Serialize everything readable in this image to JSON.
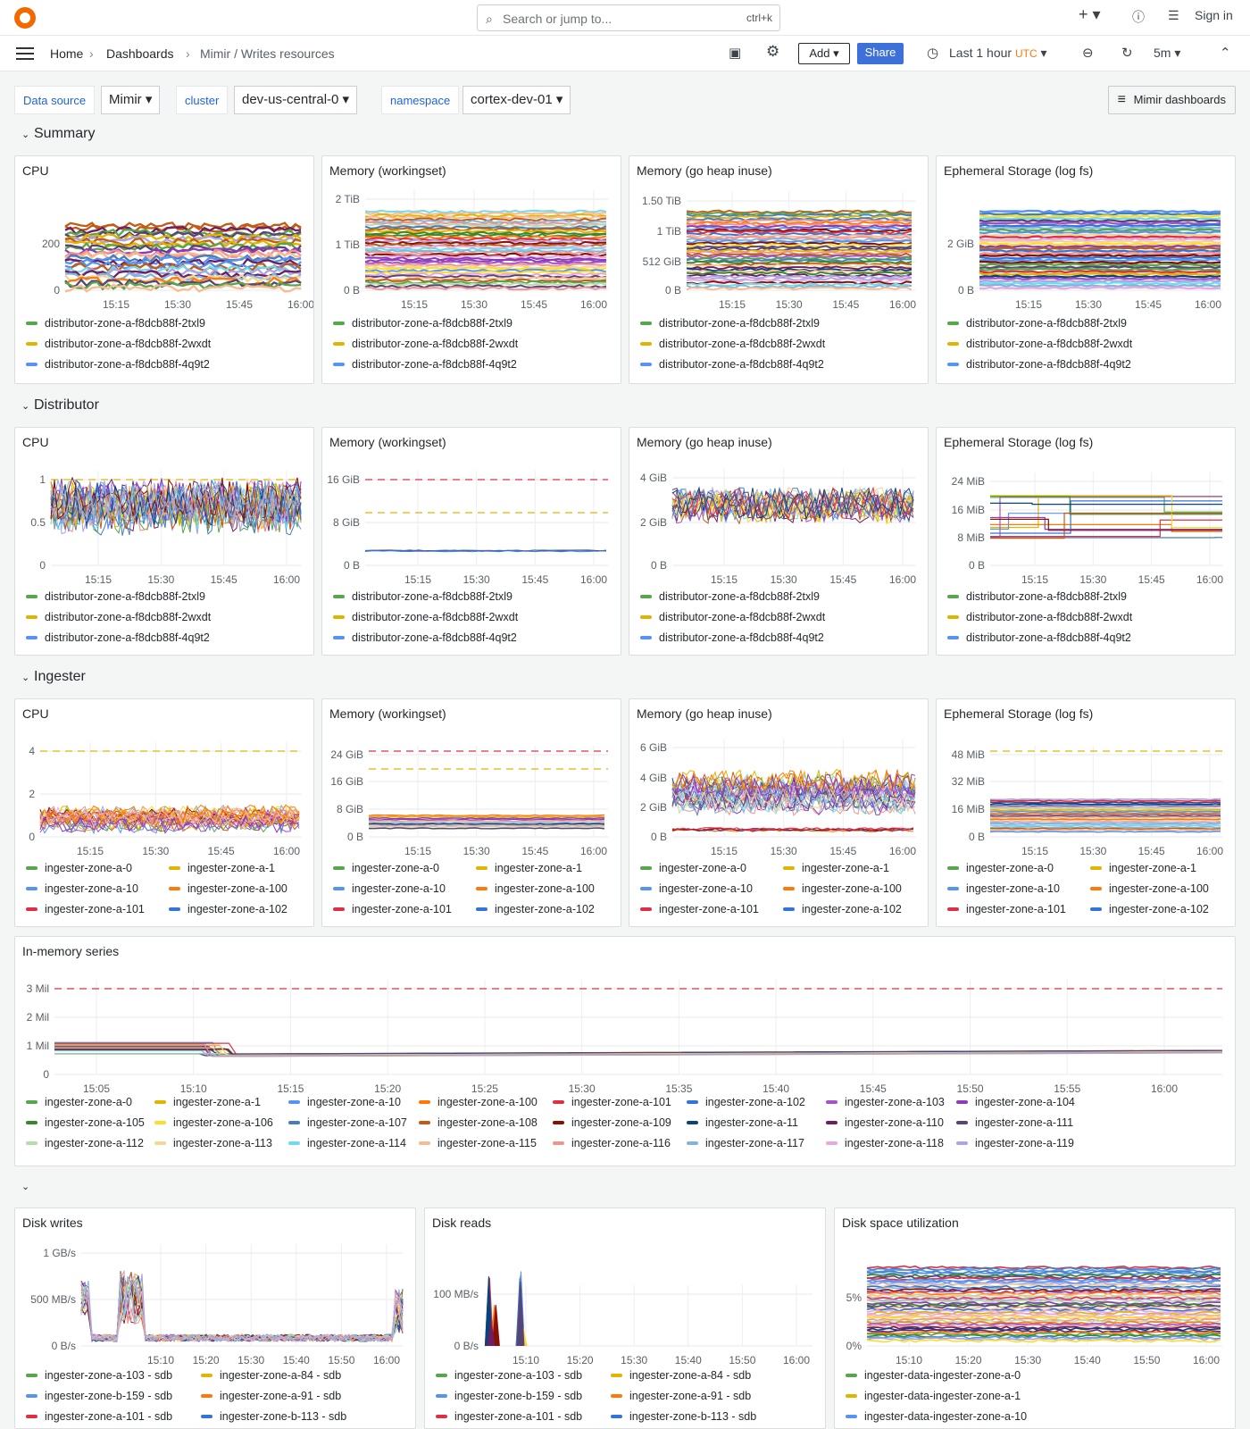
{
  "topbar": {
    "search_placeholder": "Search or jump to...",
    "search_shortcut": "ctrl+k",
    "signin": "Sign in"
  },
  "breadcrumb": {
    "home": "Home",
    "dashboards": "Dashboards",
    "current": "Mimir / Writes resources"
  },
  "toolbar": {
    "add": "Add",
    "share": "Share",
    "time_range": "Last 1 hour",
    "timezone": "UTC",
    "refresh": "5m"
  },
  "variables": [
    {
      "label": "Data source",
      "value": "Mimir"
    },
    {
      "label": "cluster",
      "value": "dev-us-central-0"
    },
    {
      "label": "namespace",
      "value": "cortex-dev-01"
    }
  ],
  "mimir_dashboards": "Mimir dashboards",
  "rows": {
    "summary": "Summary",
    "distributor": "Distributor",
    "ingester": "Ingester"
  },
  "colors": {
    "green": "#56a64b",
    "yellow": "#e0b400",
    "blue": "#5794f2",
    "orange": "#ff780a",
    "red": "#e02f44",
    "darkblue": "#3274d9",
    "purple": "#a352cc",
    "violet": "#8f3bb8"
  },
  "summary_panels": [
    {
      "title": "CPU",
      "yticks": [
        "200",
        "0"
      ],
      "xticks": [
        "15:15",
        "15:30",
        "15:45",
        "16:00"
      ],
      "legend": [
        "distributor-zone-a-f8dcb88f-2txl9",
        "distributor-zone-a-f8dcb88f-2wxdt",
        "distributor-zone-a-f8dcb88f-4q9t2"
      ]
    },
    {
      "title": "Memory (workingset)",
      "yticks": [
        "2 TiB",
        "1 TiB",
        "0 B"
      ],
      "xticks": [
        "15:15",
        "15:30",
        "15:45",
        "16:00"
      ],
      "legend": [
        "distributor-zone-a-f8dcb88f-2txl9",
        "distributor-zone-a-f8dcb88f-2wxdt",
        "distributor-zone-a-f8dcb88f-4q9t2"
      ]
    },
    {
      "title": "Memory (go heap inuse)",
      "yticks": [
        "1.50 TiB",
        "1 TiB",
        "512 GiB",
        "0 B"
      ],
      "xticks": [
        "15:15",
        "15:30",
        "15:45",
        "16:00"
      ],
      "legend": [
        "distributor-zone-a-f8dcb88f-2txl9",
        "distributor-zone-a-f8dcb88f-2wxdt",
        "distributor-zone-a-f8dcb88f-4q9t2"
      ]
    },
    {
      "title": "Ephemeral Storage (log fs)",
      "yticks": [
        "2 GiB",
        "0 B"
      ],
      "xticks": [
        "15:15",
        "15:30",
        "15:45",
        "16:00"
      ],
      "legend": [
        "distributor-zone-a-f8dcb88f-2txl9",
        "distributor-zone-a-f8dcb88f-2wxdt",
        "distributor-zone-a-f8dcb88f-4q9t2"
      ]
    }
  ],
  "distributor_panels": [
    {
      "title": "CPU",
      "yticks": [
        "1",
        "0.5",
        "0"
      ],
      "xticks": [
        "15:15",
        "15:30",
        "15:45",
        "16:00"
      ],
      "legend": [
        "distributor-zone-a-f8dcb88f-2txl9",
        "distributor-zone-a-f8dcb88f-2wxdt",
        "distributor-zone-a-f8dcb88f-4q9t2"
      ]
    },
    {
      "title": "Memory (workingset)",
      "yticks": [
        "16 GiB",
        "8 GiB",
        "0 B"
      ],
      "xticks": [
        "15:15",
        "15:30",
        "15:45",
        "16:00"
      ],
      "legend": [
        "distributor-zone-a-f8dcb88f-2txl9",
        "distributor-zone-a-f8dcb88f-2wxdt",
        "distributor-zone-a-f8dcb88f-4q9t2"
      ]
    },
    {
      "title": "Memory (go heap inuse)",
      "yticks": [
        "4 GiB",
        "2 GiB",
        "0 B"
      ],
      "xticks": [
        "15:15",
        "15:30",
        "15:45",
        "16:00"
      ],
      "legend": [
        "distributor-zone-a-f8dcb88f-2txl9",
        "distributor-zone-a-f8dcb88f-2wxdt",
        "distributor-zone-a-f8dcb88f-4q9t2"
      ]
    },
    {
      "title": "Ephemeral Storage (log fs)",
      "yticks": [
        "24 MiB",
        "16 MiB",
        "8 MiB",
        "0 B"
      ],
      "xticks": [
        "15:15",
        "15:30",
        "15:45",
        "16:00"
      ],
      "legend": [
        "distributor-zone-a-f8dcb88f-2txl9",
        "distributor-zone-a-f8dcb88f-2wxdt",
        "distributor-zone-a-f8dcb88f-4q9t2"
      ]
    }
  ],
  "ingester_panels": [
    {
      "title": "CPU",
      "yticks": [
        "4",
        "2",
        "0"
      ],
      "xticks": [
        "15:15",
        "15:30",
        "15:45",
        "16:00"
      ],
      "legend": [
        "ingester-zone-a-0",
        "ingester-zone-a-1",
        "ingester-zone-a-10",
        "ingester-zone-a-100",
        "ingester-zone-a-101",
        "ingester-zone-a-102"
      ]
    },
    {
      "title": "Memory (workingset)",
      "yticks": [
        "24 GiB",
        "16 GiB",
        "8 GiB",
        "0 B"
      ],
      "xticks": [
        "15:15",
        "15:30",
        "15:45",
        "16:00"
      ],
      "legend": [
        "ingester-zone-a-0",
        "ingester-zone-a-1",
        "ingester-zone-a-10",
        "ingester-zone-a-100",
        "ingester-zone-a-101",
        "ingester-zone-a-102"
      ]
    },
    {
      "title": "Memory (go heap inuse)",
      "yticks": [
        "6 GiB",
        "4 GiB",
        "2 GiB",
        "0 B"
      ],
      "xticks": [
        "15:15",
        "15:30",
        "15:45",
        "16:00"
      ],
      "legend": [
        "ingester-zone-a-0",
        "ingester-zone-a-1",
        "ingester-zone-a-10",
        "ingester-zone-a-100",
        "ingester-zone-a-101",
        "ingester-zone-a-102"
      ]
    },
    {
      "title": "Ephemeral Storage (log fs)",
      "yticks": [
        "48 MiB",
        "32 MiB",
        "16 MiB",
        "0 B"
      ],
      "xticks": [
        "15:15",
        "15:30",
        "15:45",
        "16:00"
      ],
      "legend": [
        "ingester-zone-a-0",
        "ingester-zone-a-1",
        "ingester-zone-a-10",
        "ingester-zone-a-100",
        "ingester-zone-a-101",
        "ingester-zone-a-102"
      ]
    }
  ],
  "inmemory": {
    "title": "In-memory series",
    "yticks": [
      "3 Mil",
      "2 Mil",
      "1 Mil",
      "0"
    ],
    "xticks": [
      "15:05",
      "15:10",
      "15:15",
      "15:20",
      "15:25",
      "15:30",
      "15:35",
      "15:40",
      "15:45",
      "15:50",
      "15:55",
      "16:00"
    ],
    "legend": [
      "ingester-zone-a-0",
      "ingester-zone-a-1",
      "ingester-zone-a-10",
      "ingester-zone-a-100",
      "ingester-zone-a-101",
      "ingester-zone-a-102",
      "ingester-zone-a-103",
      "ingester-zone-a-104",
      "ingester-zone-a-105",
      "ingester-zone-a-106",
      "ingester-zone-a-107",
      "ingester-zone-a-108",
      "ingester-zone-a-109",
      "ingester-zone-a-11",
      "ingester-zone-a-110",
      "ingester-zone-a-111",
      "ingester-zone-a-112",
      "ingester-zone-a-113",
      "ingester-zone-a-114",
      "ingester-zone-a-115",
      "ingester-zone-a-116",
      "ingester-zone-a-117",
      "ingester-zone-a-118",
      "ingester-zone-a-119"
    ]
  },
  "disk_panels": [
    {
      "title": "Disk writes",
      "yticks": [
        "1 GB/s",
        "500 MB/s",
        "0 B/s"
      ],
      "xticks": [
        "15:10",
        "15:20",
        "15:30",
        "15:40",
        "15:50",
        "16:00"
      ],
      "legend": [
        "ingester-zone-a-103 - sdb",
        "ingester-zone-a-84 - sdb",
        "ingester-zone-b-159 - sdb",
        "ingester-zone-a-91 - sdb",
        "ingester-zone-a-101 - sdb",
        "ingester-zone-b-113 - sdb"
      ]
    },
    {
      "title": "Disk reads",
      "yticks": [
        "100 MB/s",
        "0 B/s"
      ],
      "xticks": [
        "15:10",
        "15:20",
        "15:30",
        "15:40",
        "15:50",
        "16:00"
      ],
      "legend": [
        "ingester-zone-a-103 - sdb",
        "ingester-zone-a-84 - sdb",
        "ingester-zone-b-159 - sdb",
        "ingester-zone-a-91 - sdb",
        "ingester-zone-a-101 - sdb",
        "ingester-zone-b-113 - sdb"
      ]
    },
    {
      "title": "Disk space utilization",
      "yticks": [
        "5%",
        "0%"
      ],
      "xticks": [
        "15:10",
        "15:20",
        "15:30",
        "15:40",
        "15:50",
        "16:00"
      ],
      "legend": [
        "ingester-data-ingester-zone-a-0",
        "ingester-data-ingester-zone-a-1",
        "ingester-data-ingester-zone-a-10"
      ]
    }
  ]
}
